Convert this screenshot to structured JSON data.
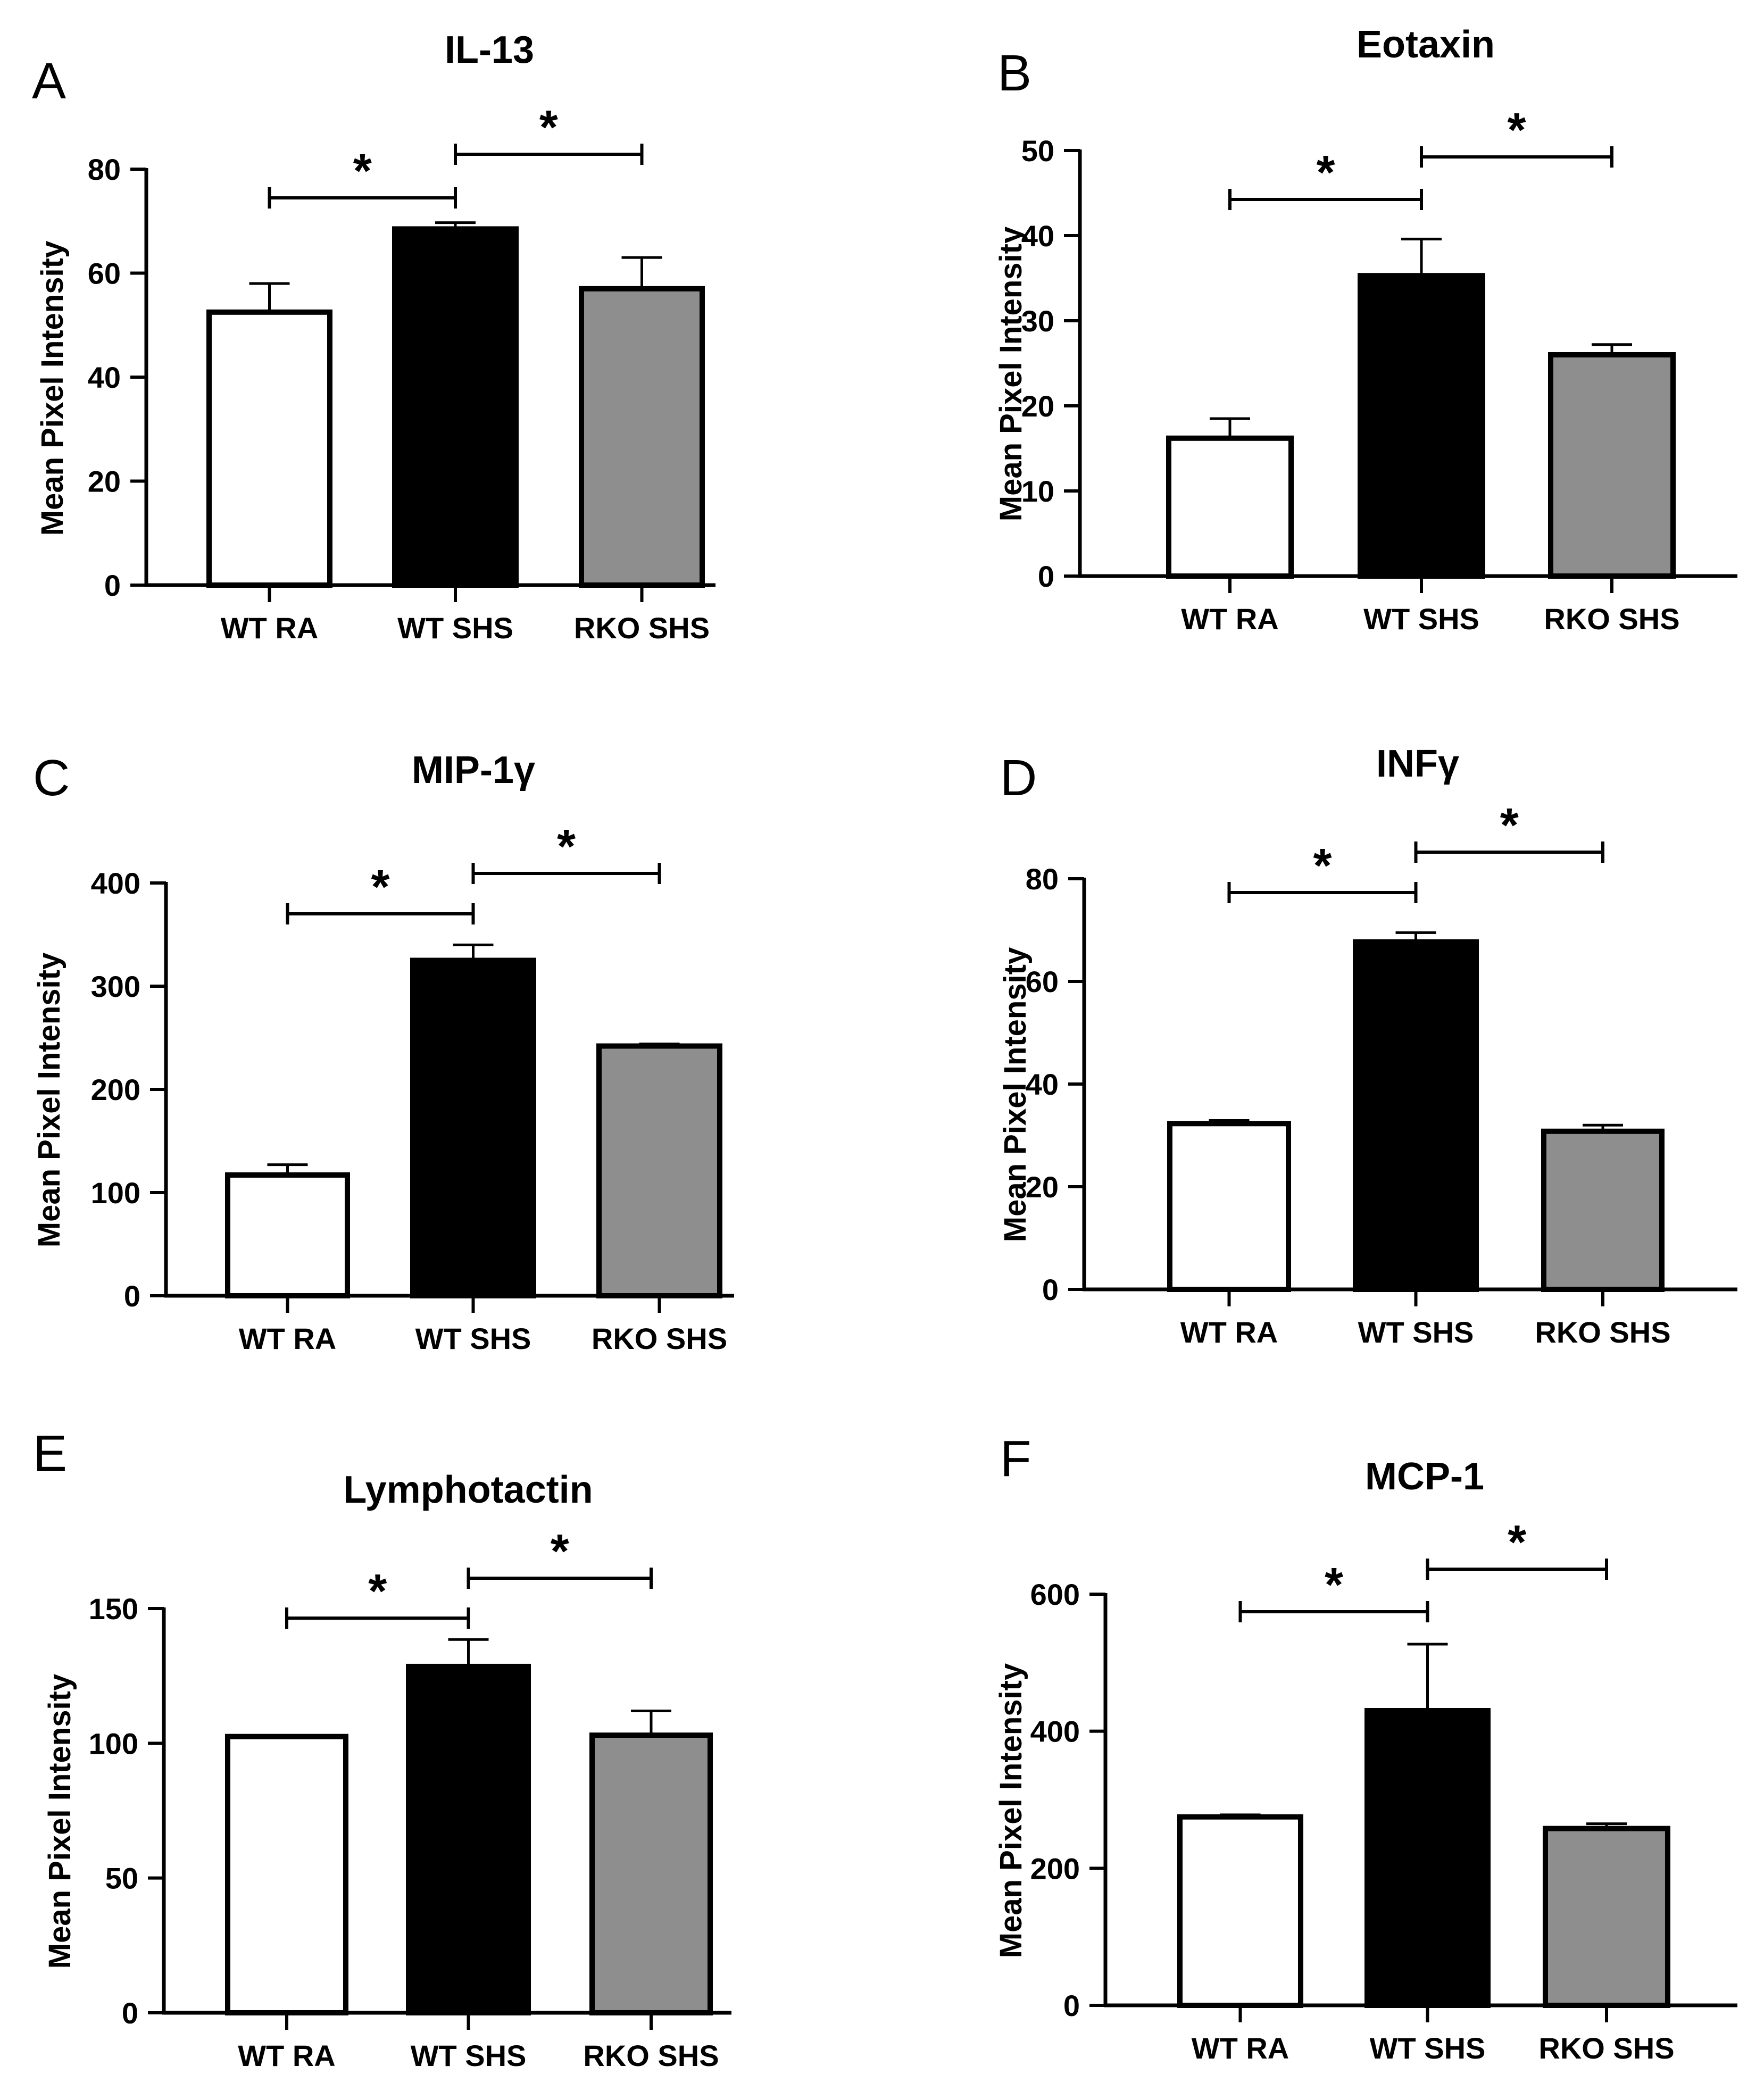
{
  "figure": {
    "colors": {
      "axis": "#000000",
      "wt_ra": "#ffffff",
      "wt_shs": "#000000",
      "rko_shs": "#8e8e8e",
      "edge": "#000000"
    }
  },
  "chart_data": [
    {
      "type": "bar",
      "panel_label": "A",
      "title": "IL-13",
      "ylabel": "Mean Pixel Intensity",
      "xlabel": "",
      "ylim": [
        0,
        80
      ],
      "yticks": [
        0,
        20,
        40,
        60,
        80
      ],
      "categories": [
        "WT RA",
        "WT SHS",
        "RKO SHS"
      ],
      "values": [
        52.5,
        68.5,
        57
      ],
      "errors": [
        5.5,
        1.2,
        6
      ],
      "significance": [
        {
          "from": 0,
          "to": 1,
          "label": "*"
        },
        {
          "from": 1,
          "to": 2,
          "label": "*"
        }
      ]
    },
    {
      "type": "bar",
      "panel_label": "B",
      "title": "Eotaxin",
      "ylabel": "Mean Pixel Intensity",
      "xlabel": "",
      "ylim": [
        0,
        50
      ],
      "yticks": [
        0,
        10,
        20,
        30,
        40,
        50
      ],
      "categories": [
        "WT RA",
        "WT SHS",
        "RKO SHS"
      ],
      "values": [
        16.2,
        35.3,
        26
      ],
      "errors": [
        2.3,
        4.3,
        1.2
      ],
      "significance": [
        {
          "from": 0,
          "to": 1,
          "label": "*"
        },
        {
          "from": 1,
          "to": 2,
          "label": "*"
        }
      ]
    },
    {
      "type": "bar",
      "panel_label": "C",
      "title": "MIP-1γ",
      "ylabel": "Mean Pixel Intensity",
      "xlabel": "",
      "ylim": [
        0,
        400
      ],
      "yticks": [
        0,
        100,
        200,
        300,
        400
      ],
      "categories": [
        "WT RA",
        "WT SHS",
        "RKO SHS"
      ],
      "values": [
        117,
        325,
        242
      ],
      "errors": [
        10,
        15,
        2
      ],
      "significance": [
        {
          "from": 0,
          "to": 1,
          "label": "*"
        },
        {
          "from": 1,
          "to": 2,
          "label": "*"
        }
      ]
    },
    {
      "type": "bar",
      "panel_label": "D",
      "title": "INFγ",
      "ylabel": "Mean Pixel Intensity",
      "xlabel": "",
      "ylim": [
        0,
        80
      ],
      "yticks": [
        0,
        20,
        40,
        60,
        80
      ],
      "categories": [
        "WT RA",
        "WT SHS",
        "RKO SHS"
      ],
      "values": [
        32.3,
        67.7,
        30.8
      ],
      "errors": [
        0.6,
        1.8,
        1.2
      ],
      "significance": [
        {
          "from": 0,
          "to": 1,
          "label": "*"
        },
        {
          "from": 1,
          "to": 2,
          "label": "*"
        }
      ]
    },
    {
      "type": "bar",
      "panel_label": "E",
      "title": "Lymphotactin",
      "ylabel": "Mean Pixel Intensity",
      "xlabel": "",
      "ylim": [
        0,
        150
      ],
      "yticks": [
        0,
        50,
        100,
        150
      ],
      "categories": [
        "WT RA",
        "WT SHS",
        "RKO SHS"
      ],
      "values": [
        102.5,
        128.5,
        103
      ],
      "errors": [
        0,
        10,
        9
      ],
      "significance": [
        {
          "from": 0,
          "to": 1,
          "label": "*"
        },
        {
          "from": 1,
          "to": 2,
          "label": "*"
        }
      ]
    },
    {
      "type": "bar",
      "panel_label": "F",
      "title": "MCP-1",
      "ylabel": "Mean Pixel Intensity",
      "xlabel": "",
      "ylim": [
        0,
        600
      ],
      "yticks": [
        0,
        200,
        400,
        600
      ],
      "categories": [
        "WT RA",
        "WT SHS",
        "RKO SHS"
      ],
      "values": [
        275,
        430,
        258
      ],
      "errors": [
        3,
        97,
        7
      ],
      "significance": [
        {
          "from": 0,
          "to": 1,
          "label": "*"
        },
        {
          "from": 1,
          "to": 2,
          "label": "*"
        }
      ]
    }
  ]
}
